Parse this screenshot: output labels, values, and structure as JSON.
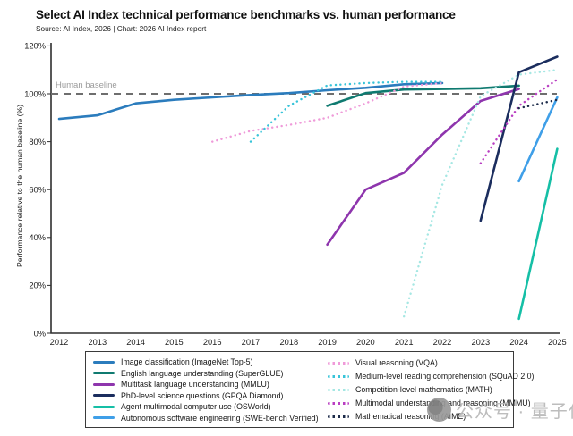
{
  "page": {
    "title": "Select AI Index technical performance benchmarks vs. human performance",
    "source": "Source: AI Index, 2026 | Chart: 2026 AI Index report",
    "watermark": "公众号 · 量子位"
  },
  "chart_data": {
    "type": "line",
    "title": "Select AI Index technical performance benchmarks vs. human performance",
    "source": "Source: AI Index, 2026 | Chart: 2026 AI Index report",
    "xlabel": "",
    "ylabel": "Performance relative to the human baseline (%)",
    "xlim": [
      2012,
      2025
    ],
    "ylim": [
      0,
      120
    ],
    "x_ticks": [
      2012,
      2013,
      2014,
      2015,
      2016,
      2017,
      2018,
      2019,
      2020,
      2021,
      2022,
      2023,
      2024,
      2025
    ],
    "y_ticks": [
      0,
      20,
      40,
      60,
      80,
      100,
      120
    ],
    "y_tick_suffix": "%",
    "grid": false,
    "legend_position": "bottom-box",
    "baseline": {
      "value": 100,
      "label": "Human baseline",
      "color": "#6e6e6e",
      "label_color": "#9b9b9b"
    },
    "series": [
      {
        "name": "Image classification (ImageNet Top-5)",
        "color": "#2b7cbd",
        "line_style": "solid",
        "legend_column": 0,
        "points": [
          [
            2012,
            89.5
          ],
          [
            2013,
            91
          ],
          [
            2014,
            96
          ],
          [
            2015,
            97.5
          ],
          [
            2016,
            98.5
          ],
          [
            2017,
            99.5
          ],
          [
            2018,
            100.3
          ],
          [
            2019,
            101.5
          ],
          [
            2020,
            102.5
          ],
          [
            2021,
            104
          ],
          [
            2022,
            104.5
          ]
        ]
      },
      {
        "name": "English language understanding (SuperGLUE)",
        "color": "#0f7a70",
        "line_style": "solid",
        "legend_column": 0,
        "points": [
          [
            2019,
            95
          ],
          [
            2020,
            100.3
          ],
          [
            2021,
            101.8
          ],
          [
            2022,
            102
          ],
          [
            2023,
            102.3
          ],
          [
            2024,
            103.4
          ]
        ]
      },
      {
        "name": "Multitask language understanding (MMLU)",
        "color": "#8e35ad",
        "line_style": "solid",
        "legend_column": 0,
        "points": [
          [
            2019,
            37
          ],
          [
            2020,
            60
          ],
          [
            2021,
            67
          ],
          [
            2022,
            83
          ],
          [
            2023,
            97
          ],
          [
            2024,
            102
          ]
        ]
      },
      {
        "name": "PhD-level science questions (GPQA Diamond)",
        "color": "#1b2d5e",
        "line_style": "solid",
        "legend_column": 0,
        "points": [
          [
            2023,
            47
          ],
          [
            2024,
            109
          ],
          [
            2025,
            115.5
          ]
        ]
      },
      {
        "name": "Agent multimodal computer use (OSWorld)",
        "color": "#15bfa6",
        "line_style": "solid",
        "legend_column": 0,
        "points": [
          [
            2024,
            6
          ],
          [
            2025,
            77
          ]
        ]
      },
      {
        "name": "Autonomous software engineering (SWE-bench Verified)",
        "color": "#3f9fe8",
        "line_style": "solid",
        "legend_column": 0,
        "points": [
          [
            2024,
            63.5
          ],
          [
            2025,
            98.5
          ]
        ]
      },
      {
        "name": "Visual reasoning (VQA)",
        "color": "#ef9ad9",
        "line_style": "dotted",
        "legend_column": 1,
        "points": [
          [
            2016,
            80
          ],
          [
            2017,
            84.5
          ],
          [
            2018,
            87
          ],
          [
            2019,
            90
          ],
          [
            2020,
            96
          ],
          [
            2021,
            103
          ],
          [
            2022,
            104.5
          ]
        ]
      },
      {
        "name": "Medium-level reading comprehension (SQuAD 2.0)",
        "color": "#38c4d9",
        "line_style": "dotted",
        "legend_column": 1,
        "points": [
          [
            2017,
            80
          ],
          [
            2018,
            95
          ],
          [
            2019,
            103.5
          ],
          [
            2020,
            104.5
          ],
          [
            2021,
            105
          ],
          [
            2022,
            105
          ]
        ]
      },
      {
        "name": "Competition-level mathematics (MATH)",
        "color": "#a5e7e3",
        "line_style": "dotted",
        "legend_column": 1,
        "points": [
          [
            2021,
            7
          ],
          [
            2022,
            62
          ],
          [
            2023,
            99
          ],
          [
            2024,
            108
          ],
          [
            2025,
            110
          ]
        ]
      },
      {
        "name": "Multimodal understanding and reasoning (MMMU)",
        "color": "#b93ec2",
        "line_style": "dotted",
        "legend_column": 1,
        "points": [
          [
            2023,
            71
          ],
          [
            2024,
            95
          ],
          [
            2025,
            106
          ]
        ]
      },
      {
        "name": "Mathematical reasoning (AIME)",
        "color": "#1c2b4a",
        "line_style": "dotted",
        "legend_column": 1,
        "points": [
          [
            2024,
            94
          ],
          [
            2025,
            97.5
          ]
        ]
      }
    ]
  }
}
